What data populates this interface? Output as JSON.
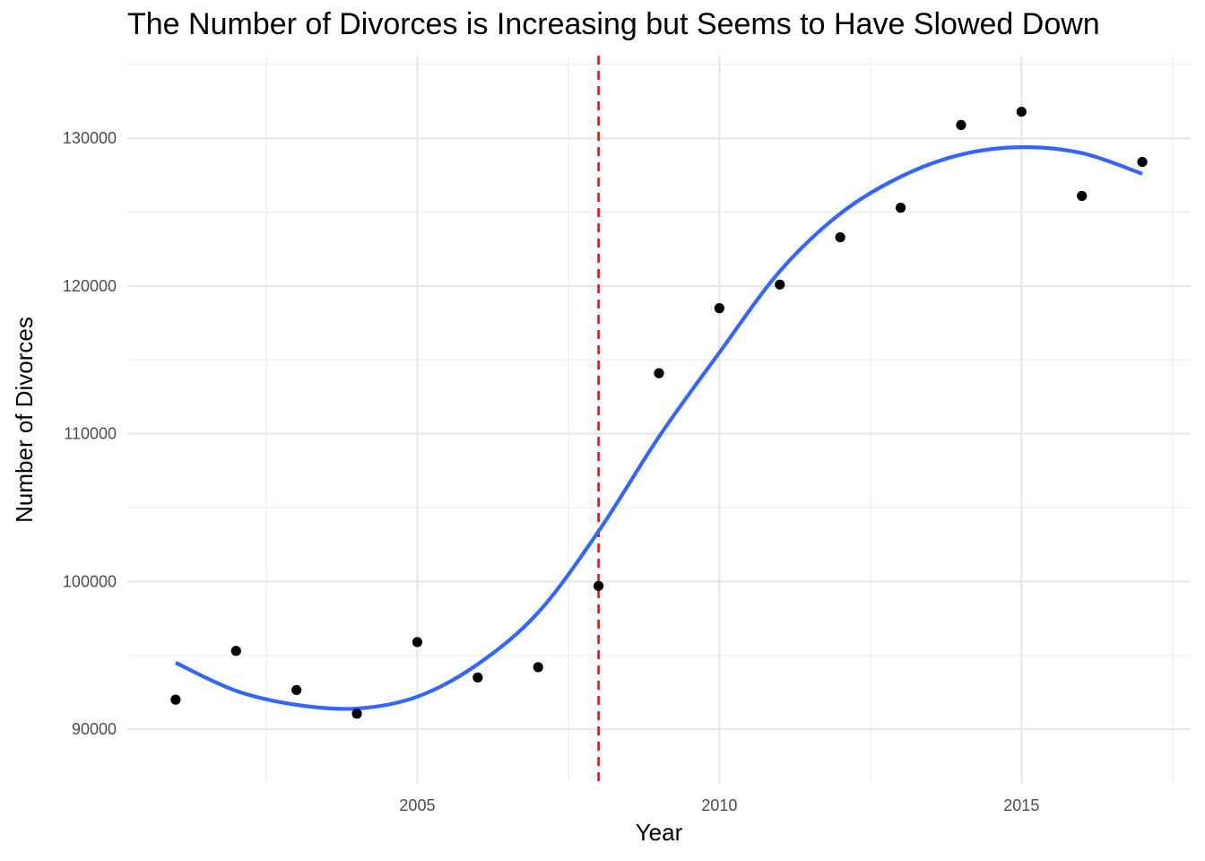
{
  "chart_data": {
    "type": "scatter",
    "title": "The Number of Divorces is Increasing but Seems to Have Slowed Down",
    "xlabel": "Year",
    "ylabel": "Number of Divorces",
    "xlim": [
      2000.2,
      2017.8
    ],
    "ylim": [
      86300,
      135600
    ],
    "x_ticks": [
      2005,
      2010,
      2015
    ],
    "x_minor_ticks": [
      2002.5,
      2007.5,
      2012.5,
      2017.5
    ],
    "y_ticks": [
      90000,
      100000,
      110000,
      120000,
      130000
    ],
    "y_minor_ticks": [
      95000,
      105000,
      115000,
      125000,
      135000
    ],
    "x_tick_labels": [
      "2005",
      "2010",
      "2015"
    ],
    "y_tick_labels": [
      "90000",
      "100000",
      "110000",
      "120000",
      "130000"
    ],
    "grid": true,
    "series": [
      {
        "type": "scatter",
        "color": "#000000",
        "points": [
          {
            "x": 2001,
            "y": 92000
          },
          {
            "x": 2002,
            "y": 95300
          },
          {
            "x": 2003,
            "y": 92650
          },
          {
            "x": 2004,
            "y": 91050
          },
          {
            "x": 2005,
            "y": 95900
          },
          {
            "x": 2006,
            "y": 93500
          },
          {
            "x": 2007,
            "y": 94200
          },
          {
            "x": 2008,
            "y": 99700
          },
          {
            "x": 2009,
            "y": 114100
          },
          {
            "x": 2010,
            "y": 118500
          },
          {
            "x": 2011,
            "y": 120100
          },
          {
            "x": 2012,
            "y": 123300
          },
          {
            "x": 2013,
            "y": 125300
          },
          {
            "x": 2014,
            "y": 130900
          },
          {
            "x": 2015,
            "y": 131800
          },
          {
            "x": 2016,
            "y": 126100
          },
          {
            "x": 2017,
            "y": 128400
          }
        ]
      },
      {
        "type": "line",
        "smooth": true,
        "color": "#3366ff",
        "points": [
          {
            "x": 2001,
            "y": 94500
          },
          {
            "x": 2002,
            "y": 92600
          },
          {
            "x": 2003,
            "y": 91650
          },
          {
            "x": 2004,
            "y": 91400
          },
          {
            "x": 2005,
            "y": 92200
          },
          {
            "x": 2006,
            "y": 94400
          },
          {
            "x": 2007,
            "y": 97900
          },
          {
            "x": 2008,
            "y": 103400
          },
          {
            "x": 2009,
            "y": 109800
          },
          {
            "x": 2010,
            "y": 115500
          },
          {
            "x": 2011,
            "y": 121000
          },
          {
            "x": 2012,
            "y": 124900
          },
          {
            "x": 2013,
            "y": 127400
          },
          {
            "x": 2014,
            "y": 128900
          },
          {
            "x": 2015,
            "y": 129400
          },
          {
            "x": 2016,
            "y": 129000
          },
          {
            "x": 2017,
            "y": 127600
          }
        ]
      }
    ],
    "annotations": [
      {
        "type": "vline",
        "x": 2008,
        "color": "#ff0000",
        "style": "dashed"
      }
    ]
  }
}
